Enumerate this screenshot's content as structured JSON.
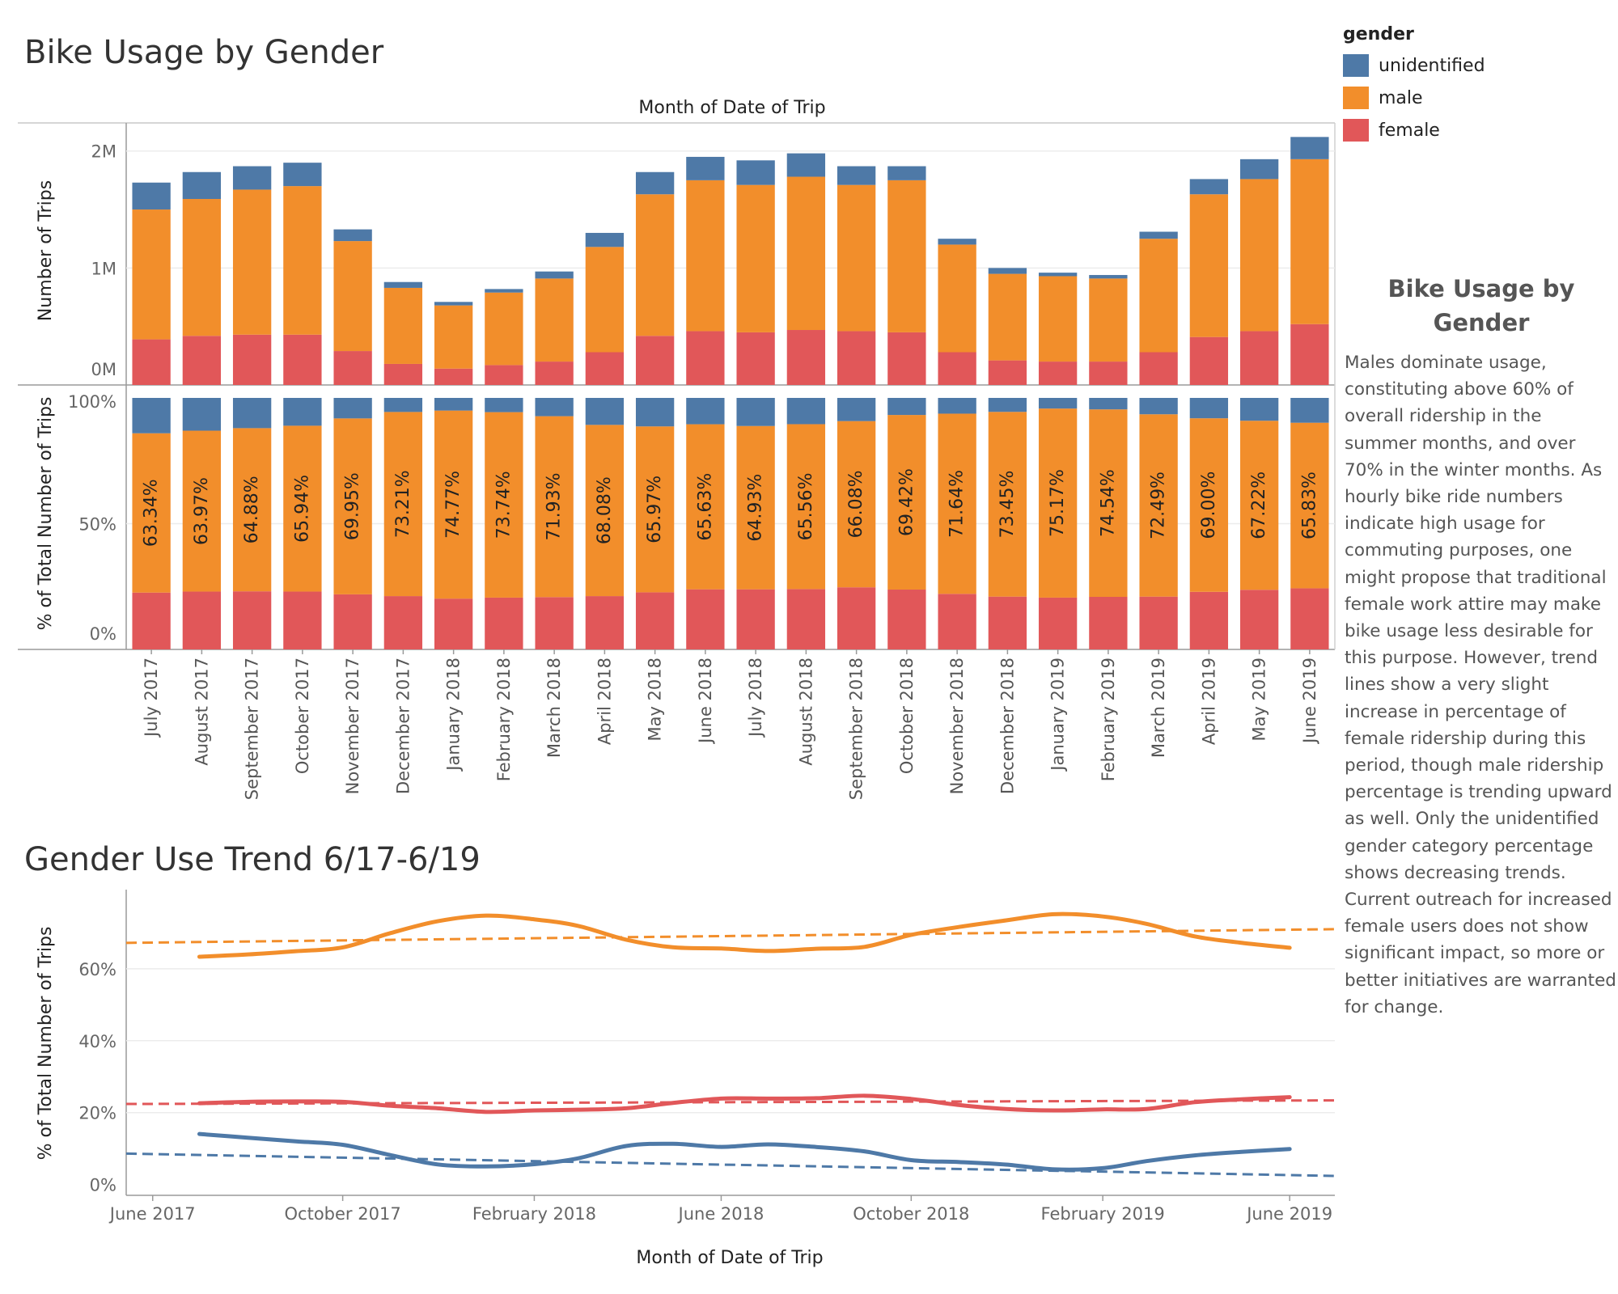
{
  "dashboard": {
    "title": "Bike Usage by Gender",
    "trend_title": "Gender Use Trend 6/17-6/19"
  },
  "legend": {
    "title": "gender",
    "items": [
      {
        "label": "unidentified",
        "color": "#4e79a7"
      },
      {
        "label": "male",
        "color": "#f28e2b"
      },
      {
        "label": "female",
        "color": "#e15759"
      }
    ]
  },
  "annotation": {
    "title": "Bike Usage by Gender",
    "body": "Males dominate usage, constituting above 60% of overall ridership in the summer months, and over 70% in the winter months. As hourly bike ride numbers indicate high usage for commuting purposes, one might propose that traditional female work attire may make bike usage less desirable for this purpose. However, trend lines show a very slight increase in percentage of female ridership during this period, though male ridership percentage is trending upward as well. Only the unidentified gender category percentage shows decreasing trends. Current outreach for increased female users does not show significant impact, so more or better initiatives are warranted for change."
  },
  "colors": {
    "unidentified": "#4e79a7",
    "male": "#f28e2b",
    "female": "#e15759"
  },
  "chart_data": [
    {
      "type": "bar",
      "stacked": true,
      "title": "Month of Date of Trip",
      "xlabel": "",
      "ylabel": "Number of Trips",
      "ylim": [
        0,
        2240000
      ],
      "yticks": [
        {
          "value": 0,
          "label": "0M"
        },
        {
          "value": 1000000,
          "label": "1M"
        },
        {
          "value": 2000000,
          "label": "2M"
        }
      ],
      "categories": [
        "July 2017",
        "August 2017",
        "September 2017",
        "October 2017",
        "November 2017",
        "December 2017",
        "January 2018",
        "February 2018",
        "March 2018",
        "April 2018",
        "May 2018",
        "June 2018",
        "July 2018",
        "August 2018",
        "September 2018",
        "October 2018",
        "November 2018",
        "December 2018",
        "January 2019",
        "February 2019",
        "March 2019",
        "April 2019",
        "May 2019",
        "June 2019"
      ],
      "series": [
        {
          "name": "female",
          "values": [
            390000,
            420000,
            430000,
            430000,
            290000,
            180000,
            140000,
            170000,
            200000,
            280000,
            420000,
            460000,
            450000,
            470000,
            460000,
            450000,
            280000,
            210000,
            200000,
            200000,
            280000,
            410000,
            460000,
            520000
          ]
        },
        {
          "name": "male",
          "values": [
            1110000,
            1170000,
            1240000,
            1270000,
            940000,
            650000,
            540000,
            620000,
            710000,
            900000,
            1210000,
            1290000,
            1260000,
            1310000,
            1250000,
            1300000,
            920000,
            740000,
            730000,
            710000,
            970000,
            1220000,
            1300000,
            1410000
          ]
        },
        {
          "name": "unidentified",
          "values": [
            230000,
            230000,
            200000,
            200000,
            100000,
            50000,
            30000,
            30000,
            60000,
            120000,
            190000,
            200000,
            210000,
            200000,
            160000,
            120000,
            50000,
            50000,
            30000,
            30000,
            60000,
            130000,
            170000,
            190000
          ]
        }
      ]
    },
    {
      "type": "bar",
      "stacked": true,
      "normalized": true,
      "ylabel": "% of Total Number of Trips",
      "ylim": [
        0,
        100
      ],
      "yticks": [
        {
          "value": 0,
          "label": "0%"
        },
        {
          "value": 50,
          "label": "50%"
        },
        {
          "value": 100,
          "label": "100%"
        }
      ],
      "categories": [
        "July 2017",
        "August 2017",
        "September 2017",
        "October 2017",
        "November 2017",
        "December 2017",
        "January 2018",
        "February 2018",
        "March 2018",
        "April 2018",
        "May 2018",
        "June 2018",
        "July 2018",
        "August 2018",
        "September 2018",
        "October 2018",
        "November 2018",
        "December 2018",
        "January 2019",
        "February 2019",
        "March 2019",
        "April 2019",
        "May 2019",
        "June 2019"
      ],
      "series": [
        {
          "name": "female",
          "values": [
            22.6,
            23.0,
            23.1,
            23.0,
            21.9,
            21.2,
            20.2,
            20.6,
            20.8,
            21.2,
            22.7,
            23.9,
            23.9,
            24.0,
            24.7,
            23.8,
            22.1,
            21.0,
            20.6,
            20.9,
            21.0,
            22.9,
            23.7,
            24.3
          ]
        },
        {
          "name": "male",
          "values": [
            63.34,
            63.97,
            64.88,
            65.94,
            69.95,
            73.21,
            74.77,
            73.74,
            71.93,
            68.08,
            65.97,
            65.63,
            64.93,
            65.56,
            66.08,
            69.42,
            71.64,
            73.45,
            75.17,
            74.54,
            72.49,
            69.0,
            67.22,
            65.83
          ]
        },
        {
          "name": "unidentified",
          "values": [
            14.06,
            13.03,
            12.02,
            11.06,
            8.15,
            5.59,
            5.03,
            5.66,
            7.27,
            10.72,
            11.33,
            10.47,
            11.17,
            10.44,
            9.22,
            6.78,
            6.26,
            5.55,
            4.23,
            4.56,
            6.51,
            8.1,
            9.08,
            9.87
          ]
        }
      ],
      "labels": [
        "63.34%",
        "63.97%",
        "64.88%",
        "65.94%",
        "69.95%",
        "73.21%",
        "74.77%",
        "73.74%",
        "71.93%",
        "68.08%",
        "65.97%",
        "65.63%",
        "64.93%",
        "65.56%",
        "66.08%",
        "69.42%",
        "71.64%",
        "73.45%",
        "75.17%",
        "74.54%",
        "72.49%",
        "69.00%",
        "67.22%",
        "65.83%"
      ]
    },
    {
      "type": "line",
      "xlabel": "Month of Date of Trip",
      "ylabel": "% of Total Number of Trips",
      "ylim": [
        -3,
        82
      ],
      "yticks": [
        {
          "value": 0,
          "label": "0%"
        },
        {
          "value": 20,
          "label": "20%"
        },
        {
          "value": 40,
          "label": "40%"
        },
        {
          "value": 60,
          "label": "60%"
        }
      ],
      "xticks": [
        {
          "value": "2017-06",
          "label": "June 2017"
        },
        {
          "value": "2017-10",
          "label": "October 2017"
        },
        {
          "value": "2018-02",
          "label": "February 2018"
        },
        {
          "value": "2018-06",
          "label": "June 2018"
        },
        {
          "value": "2018-10",
          "label": "October 2018"
        },
        {
          "value": "2019-02",
          "label": "February 2019"
        },
        {
          "value": "2019-06",
          "label": "June 2019"
        }
      ],
      "xlim": [
        "2017-05-15",
        "2019-06-30"
      ],
      "x": [
        "2017-07",
        "2017-08",
        "2017-09",
        "2017-10",
        "2017-11",
        "2017-12",
        "2018-01",
        "2018-02",
        "2018-03",
        "2018-04",
        "2018-05",
        "2018-06",
        "2018-07",
        "2018-08",
        "2018-09",
        "2018-10",
        "2018-11",
        "2018-12",
        "2019-01",
        "2019-02",
        "2019-03",
        "2019-04",
        "2019-05",
        "2019-06"
      ],
      "series": [
        {
          "name": "male",
          "values": [
            63.34,
            63.97,
            64.88,
            65.94,
            69.95,
            73.21,
            74.77,
            73.74,
            71.93,
            68.08,
            65.97,
            65.63,
            64.93,
            65.56,
            66.08,
            69.42,
            71.64,
            73.45,
            75.17,
            74.54,
            72.49,
            69.0,
            67.22,
            65.83
          ],
          "trend": [
            67.2,
            71.0
          ]
        },
        {
          "name": "female",
          "values": [
            22.6,
            23.0,
            23.1,
            23.0,
            21.9,
            21.2,
            20.2,
            20.6,
            20.8,
            21.2,
            22.7,
            23.9,
            23.9,
            24.0,
            24.7,
            23.8,
            22.1,
            21.0,
            20.6,
            20.9,
            21.0,
            22.9,
            23.7,
            24.3
          ],
          "trend": [
            22.4,
            23.4
          ]
        },
        {
          "name": "unidentified",
          "values": [
            14.06,
            13.03,
            12.02,
            11.06,
            8.15,
            5.59,
            5.03,
            5.66,
            7.27,
            10.72,
            11.33,
            10.47,
            11.17,
            10.44,
            9.22,
            6.78,
            6.26,
            5.55,
            4.23,
            4.56,
            6.51,
            8.1,
            9.08,
            9.87
          ],
          "trend": [
            8.6,
            2.4
          ]
        }
      ]
    }
  ]
}
